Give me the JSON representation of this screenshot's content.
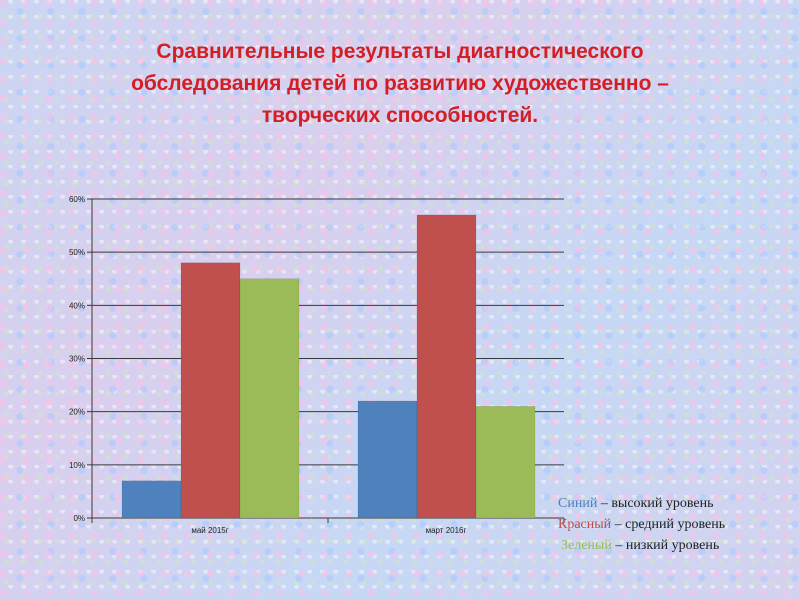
{
  "title": {
    "lines": [
      "Сравнительные результаты диагностического",
      "обследования детей по развитию художественно –",
      "творческих способностей."
    ]
  },
  "colors": {
    "title": "#d21e24",
    "blue": "#4f81bd",
    "red": "#c0504d",
    "green": "#9bbb59",
    "grid": "#3a3a3a"
  },
  "chart_data": {
    "type": "bar",
    "title": "",
    "xlabel": "",
    "ylabel": "",
    "categories": [
      "май 2015г",
      "март 2016г"
    ],
    "series": [
      {
        "color": "#4f81bd",
        "values": [
          7,
          22
        ]
      },
      {
        "color": "#c0504d",
        "values": [
          48,
          57
        ]
      },
      {
        "color": "#9bbb59",
        "values": [
          45,
          21
        ]
      }
    ],
    "ylim": [
      0,
      60
    ],
    "yticks": [
      0,
      10,
      20,
      30,
      40,
      50,
      60
    ],
    "ytick_labels": [
      "0%",
      "10%",
      "20%",
      "30%",
      "40%",
      "50%",
      "60%"
    ],
    "grid": true,
    "legend_position": "bottom-right"
  },
  "legend": {
    "items": [
      {
        "color_word": "Синий",
        "separator": " – ",
        "text": "высокий уровень",
        "color": "#4f81bd"
      },
      {
        "color_word": "Красный",
        "separator": " – ",
        "text": "средний уровень",
        "color": "#c0504d"
      },
      {
        "color_word": "Зеленый",
        "separator": " – ",
        "text": "низкий уровень",
        "color": "#9bbb59"
      }
    ]
  }
}
